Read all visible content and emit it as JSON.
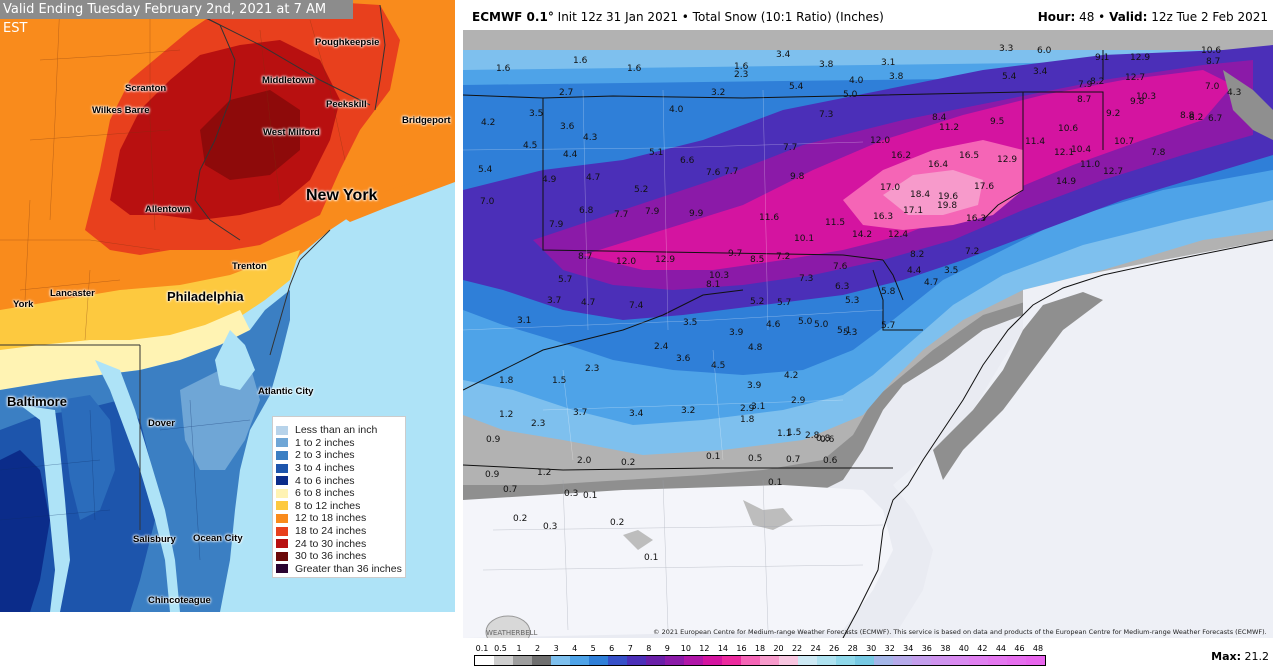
{
  "left_map": {
    "title": "Valid Ending Tuesday February 2nd, 2021 at 7 AM EST",
    "cities": [
      {
        "name": "Poughkeepsie"
      },
      {
        "name": "Scranton"
      },
      {
        "name": "Middletown"
      },
      {
        "name": "Wilkes Barre"
      },
      {
        "name": "Peekskill"
      },
      {
        "name": "Bridgeport"
      },
      {
        "name": "West Milford"
      },
      {
        "name": "New York"
      },
      {
        "name": "Allentown"
      },
      {
        "name": "Trenton"
      },
      {
        "name": "Lancaster"
      },
      {
        "name": "Philadelphia"
      },
      {
        "name": "York"
      },
      {
        "name": "Atlantic City"
      },
      {
        "name": "Baltimore"
      },
      {
        "name": "Dover"
      },
      {
        "name": "Salisbury"
      },
      {
        "name": "Ocean City"
      },
      {
        "name": "Chincoteague"
      }
    ],
    "legend": [
      {
        "label": "Less than an inch",
        "color": "#b7d3ea"
      },
      {
        "label": "1 to 2 inches",
        "color": "#6fa6d6"
      },
      {
        "label": "2 to 3 inches",
        "color": "#3b7fc3"
      },
      {
        "label": "3 to 4 inches",
        "color": "#1d55ac"
      },
      {
        "label": "4 to 6 inches",
        "color": "#0b2c8a"
      },
      {
        "label": "6 to 8 inches",
        "color": "#fff3b3"
      },
      {
        "label": "8 to 12 inches",
        "color": "#fdc93f"
      },
      {
        "label": "12 to 18 inches",
        "color": "#f98b1c"
      },
      {
        "label": "18 to 24 inches",
        "color": "#e8401d"
      },
      {
        "label": "24 to 30 inches",
        "color": "#b81010"
      },
      {
        "label": "30 to 36 inches",
        "color": "#6b0808"
      },
      {
        "label": "Greater than 36 inches",
        "color": "#2a0330"
      }
    ]
  },
  "right_map": {
    "header_left_model": "ECMWF 0.1°",
    "header_left_rest": "Init 12z 31 Jan 2021 • Total Snow (10:1 Ratio) (Inches)",
    "header_right_hour_label": "Hour:",
    "header_right_hour": "48",
    "header_right_valid_label": "Valid:",
    "header_right_valid": "12z Tue 2 Feb 2021",
    "copyright": "© 2021 European Centre for Medium-range Weather Forecasts (ECMWF). This service is based on data and products of the European Centre for Medium-range Weather Forecasts (ECMWF).",
    "logo_text": "WEATHERBELL",
    "max_label": "Max:",
    "max_value": "21.2",
    "scale_labels": [
      "0.1",
      "0.5",
      "1",
      "2",
      "3",
      "4",
      "5",
      "6",
      "7",
      "8",
      "9",
      "10",
      "12",
      "14",
      "16",
      "18",
      "20",
      "22",
      "24",
      "26",
      "28",
      "30",
      "32",
      "34",
      "36",
      "38",
      "40",
      "42",
      "44",
      "46",
      "48"
    ],
    "scale_colors": [
      "#ffffff",
      "#cfcfcf",
      "#9e9e9e",
      "#6f6f6f",
      "#7ec0ee",
      "#4ea3e8",
      "#2f7fd8",
      "#3650c8",
      "#4b2fb8",
      "#6a1fa8",
      "#8b1aa8",
      "#b016a8",
      "#d414a0",
      "#ec2a9e",
      "#f565b6",
      "#f79acb",
      "#f8c6e0",
      "#cde9f4",
      "#aee2f0",
      "#8fd8ea",
      "#77c9e3",
      "#a4b6e8",
      "#b6aaea",
      "#c49eec",
      "#cf93ee",
      "#d98af0",
      "#e080f0",
      "#e477ef",
      "#e66eee",
      "#e865ed"
    ],
    "values": [
      {
        "v": "1.6"
      },
      {
        "v": "1.6"
      },
      {
        "v": "1.6"
      },
      {
        "v": "1.6"
      },
      {
        "v": "2.3"
      },
      {
        "v": "3.4"
      },
      {
        "v": "3.8"
      },
      {
        "v": "3.1"
      },
      {
        "v": "3.8"
      },
      {
        "v": "3.3"
      },
      {
        "v": "6.0"
      },
      {
        "v": "10.6"
      },
      {
        "v": "2.7"
      },
      {
        "v": "3.2"
      },
      {
        "v": "5.4"
      },
      {
        "v": "5.0"
      },
      {
        "v": "4.0"
      },
      {
        "v": "5.4"
      },
      {
        "v": "3.4"
      },
      {
        "v": "9.1"
      },
      {
        "v": "12.9"
      },
      {
        "v": "8.7"
      },
      {
        "v": "3.5"
      },
      {
        "v": "4.0"
      },
      {
        "v": "7.3"
      },
      {
        "v": "8.4"
      },
      {
        "v": "9.5"
      },
      {
        "v": "11.2"
      },
      {
        "v": "7.9"
      },
      {
        "v": "8.2"
      },
      {
        "v": "12.7"
      },
      {
        "v": "10.3"
      },
      {
        "v": "7.0"
      },
      {
        "v": "4.3"
      },
      {
        "v": "4.2"
      },
      {
        "v": "3.6"
      },
      {
        "v": "4.3"
      },
      {
        "v": "8.7"
      },
      {
        "v": "10.6"
      },
      {
        "v": "9.2"
      },
      {
        "v": "9.8"
      },
      {
        "v": "8.8"
      },
      {
        "v": "8.2"
      },
      {
        "v": "6.7"
      },
      {
        "v": "4.5"
      },
      {
        "v": "4.4"
      },
      {
        "v": "5.1"
      },
      {
        "v": "6.6"
      },
      {
        "v": "7.7"
      },
      {
        "v": "12.0"
      },
      {
        "v": "16.2"
      },
      {
        "v": "16.5"
      },
      {
        "v": "11.4"
      },
      {
        "v": "12.1"
      },
      {
        "v": "10.4"
      },
      {
        "v": "10.7"
      },
      {
        "v": "7.8"
      },
      {
        "v": "5.4"
      },
      {
        "v": "4.9"
      },
      {
        "v": "4.7"
      },
      {
        "v": "7.6"
      },
      {
        "v": "7.7"
      },
      {
        "v": "9.8"
      },
      {
        "v": "16.4"
      },
      {
        "v": "12.9"
      },
      {
        "v": "11.0"
      },
      {
        "v": "12.7"
      },
      {
        "v": "5.2"
      },
      {
        "v": "17.0"
      },
      {
        "v": "18.4"
      },
      {
        "v": "19.6"
      },
      {
        "v": "17.6"
      },
      {
        "v": "14.9"
      },
      {
        "v": "7.0"
      },
      {
        "v": "6.8"
      },
      {
        "v": "7.7"
      },
      {
        "v": "7.9"
      },
      {
        "v": "9.9"
      },
      {
        "v": "11.6"
      },
      {
        "v": "11.5"
      },
      {
        "v": "16.3"
      },
      {
        "v": "17.1"
      },
      {
        "v": "19.8"
      },
      {
        "v": "16.3"
      },
      {
        "v": "7.9"
      },
      {
        "v": "10.1"
      },
      {
        "v": "14.2"
      },
      {
        "v": "12.4"
      },
      {
        "v": "7.2"
      },
      {
        "v": "8.7"
      },
      {
        "v": "12.0"
      },
      {
        "v": "12.9"
      },
      {
        "v": "9.7"
      },
      {
        "v": "8.5"
      },
      {
        "v": "7.2"
      },
      {
        "v": "8.2"
      },
      {
        "v": "10.3"
      },
      {
        "v": "7.6"
      },
      {
        "v": "4.4"
      },
      {
        "v": "3.5"
      },
      {
        "v": "5.7"
      },
      {
        "v": "8.1"
      },
      {
        "v": "7.3"
      },
      {
        "v": "6.3"
      },
      {
        "v": "5.8"
      },
      {
        "v": "4.7"
      },
      {
        "v": "3.7"
      },
      {
        "v": "4.7"
      },
      {
        "v": "7.4"
      },
      {
        "v": "5.2"
      },
      {
        "v": "5.7"
      },
      {
        "v": "5.3"
      },
      {
        "v": "5.0"
      },
      {
        "v": "3.1"
      },
      {
        "v": "3.5"
      },
      {
        "v": "4.6"
      },
      {
        "v": "5.3"
      },
      {
        "v": "5.7"
      },
      {
        "v": "3.9"
      },
      {
        "v": "5.0"
      },
      {
        "v": "5.1"
      },
      {
        "v": "2.4"
      },
      {
        "v": "4.8"
      },
      {
        "v": "3.6"
      },
      {
        "v": "4.5"
      },
      {
        "v": "2.3"
      },
      {
        "v": "4.2"
      },
      {
        "v": "1.8"
      },
      {
        "v": "1.5"
      },
      {
        "v": "3.9"
      },
      {
        "v": "3.1"
      },
      {
        "v": "2.9"
      },
      {
        "v": "3.7"
      },
      {
        "v": "3.4"
      },
      {
        "v": "3.2"
      },
      {
        "v": "2.9"
      },
      {
        "v": "1.2"
      },
      {
        "v": "2.3"
      },
      {
        "v": "1.8"
      },
      {
        "v": "1.5"
      },
      {
        "v": "0.9"
      },
      {
        "v": "1.1"
      },
      {
        "v": "0.8"
      },
      {
        "v": "2.8"
      },
      {
        "v": "0.6"
      },
      {
        "v": "2.0"
      },
      {
        "v": "0.2"
      },
      {
        "v": "0.1"
      },
      {
        "v": "0.5"
      },
      {
        "v": "0.7"
      },
      {
        "v": "0.6"
      },
      {
        "v": "0.9"
      },
      {
        "v": "1.2"
      },
      {
        "v": "0.1"
      },
      {
        "v": "0.7"
      },
      {
        "v": "0.3"
      },
      {
        "v": "0.1"
      },
      {
        "v": "0.2"
      },
      {
        "v": "0.3"
      },
      {
        "v": "0.2"
      },
      {
        "v": "0.1"
      }
    ]
  }
}
